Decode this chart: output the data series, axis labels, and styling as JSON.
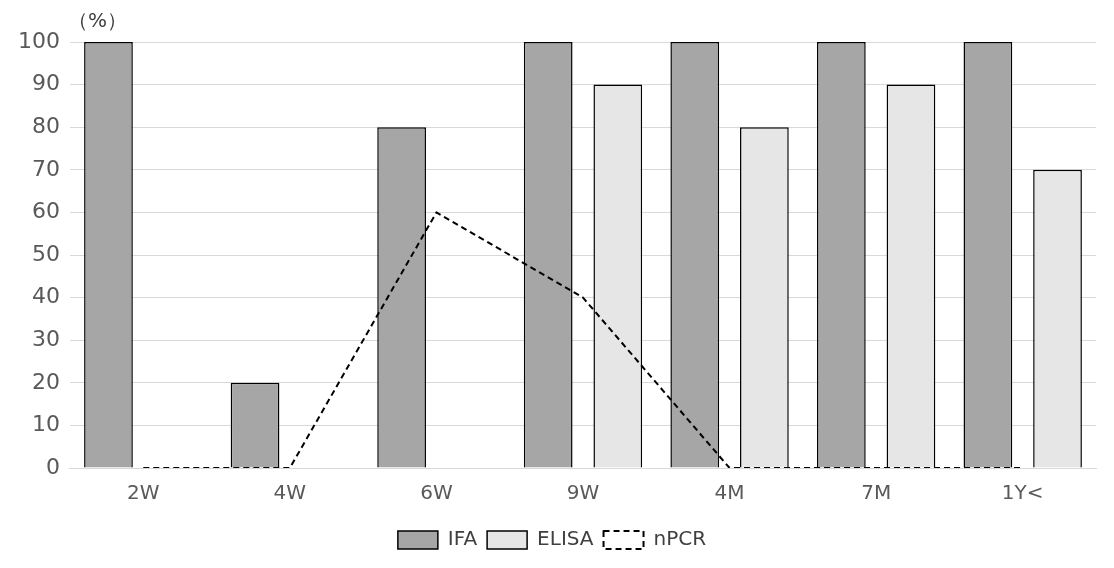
{
  "chart_data": {
    "type": "bar",
    "ylabel": "（%）",
    "categories": [
      "2W",
      "4W",
      "6W",
      "9W",
      "4M",
      "7M",
      "1Y<"
    ],
    "series": [
      {
        "name": "IFA",
        "color": "#a6a6a6",
        "values": [
          100,
          20,
          80,
          100,
          100,
          100,
          100
        ]
      },
      {
        "name": "ELISA",
        "color": "#e6e6e6",
        "values": [
          0,
          0,
          0,
          90,
          80,
          90,
          70
        ]
      },
      {
        "name": "nPCR",
        "type": "line",
        "color": "#000000",
        "line_style": "dashed",
        "marker": "none",
        "values": [
          0,
          0,
          60,
          40,
          0,
          0,
          0
        ]
      }
    ],
    "ylim": [
      0,
      100
    ],
    "yticks": [
      0,
      10,
      20,
      30,
      40,
      50,
      60,
      70,
      80,
      90,
      100
    ],
    "grid": "y",
    "legend": "bottom"
  }
}
